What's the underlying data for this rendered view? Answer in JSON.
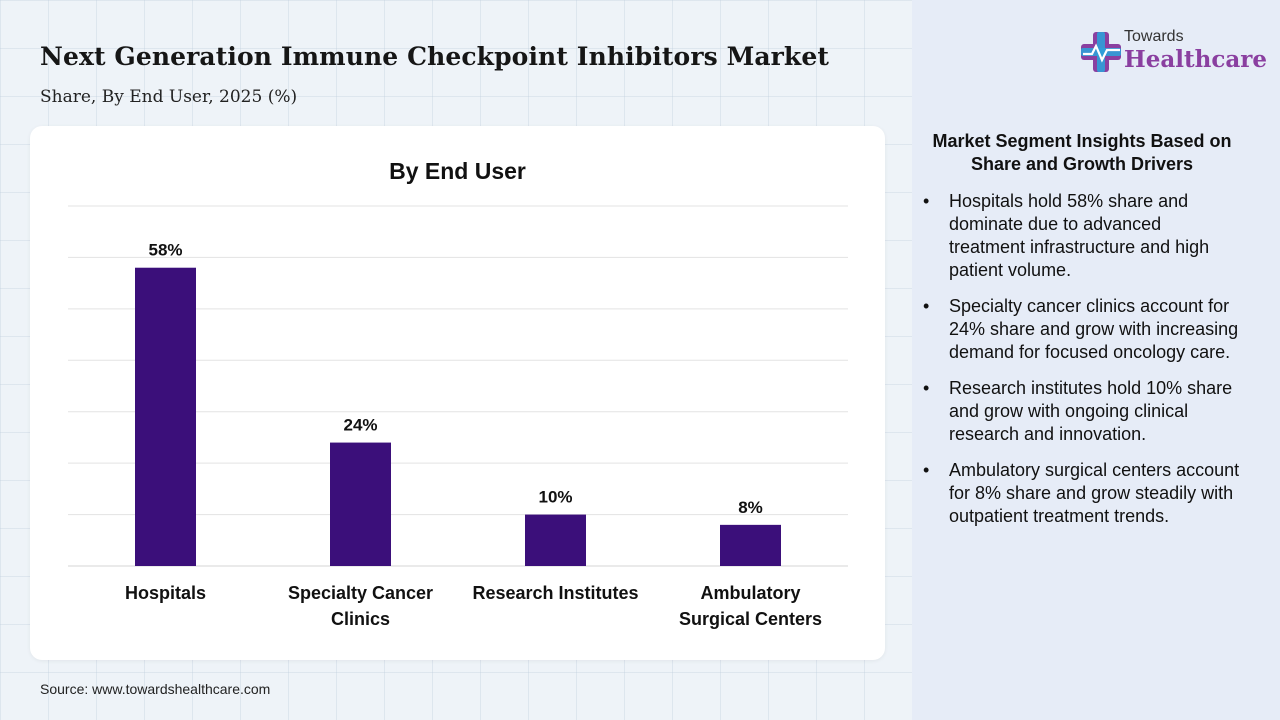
{
  "header": {
    "title": "Next Generation Immune Checkpoint Inhibitors Market",
    "subtitle": "Share, By End User, 2025 (%)"
  },
  "logo": {
    "line1": "Towards",
    "line2": "Healthcare"
  },
  "chart_data": {
    "type": "bar",
    "title": "By End User",
    "categories": [
      "Hospitals",
      "Specialty Cancer Clinics",
      "Research Institutes",
      "Ambulatory Surgical Centers"
    ],
    "category_lines": [
      [
        "Hospitals"
      ],
      [
        "Specialty Cancer",
        "Clinics"
      ],
      [
        "Research Institutes"
      ],
      [
        "Ambulatory",
        "Surgical Centers"
      ]
    ],
    "values": [
      58,
      24,
      10,
      8
    ],
    "value_labels": [
      "58%",
      "24%",
      "10%",
      "8%"
    ],
    "ylim": [
      0,
      70
    ],
    "grid": true,
    "bar_color": "#3b0f7a",
    "xlabel": "",
    "ylabel": ""
  },
  "insights": {
    "title": "Market Segment Insights Based on Share and Growth Drivers",
    "bullet": "•",
    "items": [
      "Hospitals hold 58% share and dominate due to advanced treatment infrastructure and high patient volume.",
      "Specialty cancer clinics account for 24% share and grow with increasing demand for focused oncology care.",
      "Research institutes hold 10% share and grow with ongoing clinical research and innovation.",
      "Ambulatory surgical centers account for 8% share and grow steadily with outpatient treatment trends."
    ]
  },
  "source": "Source: www.towardshealthcare.com"
}
